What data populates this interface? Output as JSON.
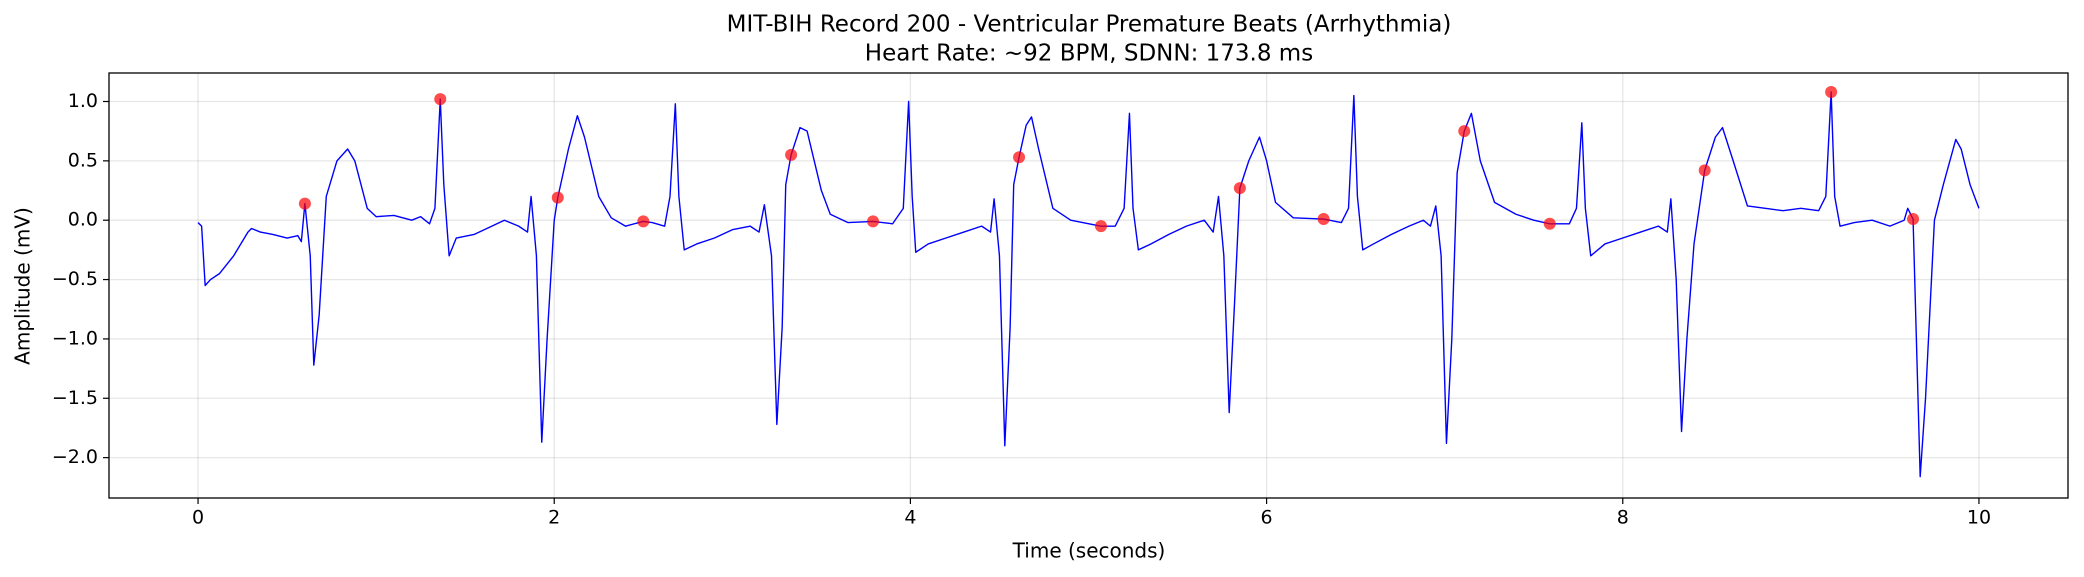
{
  "chart_data": {
    "type": "line",
    "title": "MIT-BIH Record 200 - Ventricular Premature Beats (Arrhythmia)",
    "subtitle": "Heart Rate: ~92 BPM, SDNN: 173.8 ms",
    "x_label": "Time (seconds)",
    "y_label": "Amplitude (mV)",
    "xlim": [
      -0.5,
      10.5
    ],
    "ylim": [
      -2.34,
      1.24
    ],
    "xticks": [
      0,
      2,
      4,
      6,
      8,
      10
    ],
    "yticks": [
      {
        "value": -2.0,
        "label": "−2.0"
      },
      {
        "value": -1.5,
        "label": "−1.5"
      },
      {
        "value": -1.0,
        "label": "−1.0"
      },
      {
        "value": -0.5,
        "label": "−0.5"
      },
      {
        "value": 0.0,
        "label": "0.0"
      },
      {
        "value": 0.5,
        "label": "0.5"
      },
      {
        "value": 1.0,
        "label": "1.0"
      }
    ],
    "grid": true,
    "series": [
      {
        "type": "line",
        "color": "#0000ff",
        "x": [
          0,
          0.02,
          0.04,
          0.07,
          0.12,
          0.2,
          0.28,
          0.3,
          0.35,
          0.42,
          0.5,
          0.56,
          0.58,
          0.6,
          0.63,
          0.65,
          0.68,
          0.72,
          0.78,
          0.84,
          0.88,
          0.95,
          1.0,
          1.1,
          1.2,
          1.25,
          1.3,
          1.33,
          1.36,
          1.38,
          1.41,
          1.45,
          1.55,
          1.65,
          1.72,
          1.8,
          1.85,
          1.87,
          1.9,
          1.93,
          1.96,
          2.0,
          2.02,
          2.08,
          2.13,
          2.17,
          2.25,
          2.32,
          2.4,
          2.5,
          2.55,
          2.62,
          2.65,
          2.68,
          2.7,
          2.73,
          2.8,
          2.9,
          3.0,
          3.1,
          3.15,
          3.18,
          3.22,
          3.25,
          3.28,
          3.3,
          3.33,
          3.38,
          3.42,
          3.5,
          3.55,
          3.65,
          3.79,
          3.9,
          3.96,
          3.99,
          4.01,
          4.03,
          4.1,
          4.2,
          4.3,
          4.4,
          4.45,
          4.47,
          4.5,
          4.53,
          4.56,
          4.58,
          4.61,
          4.65,
          4.68,
          4.72,
          4.8,
          4.9,
          5.07,
          5.15,
          5.2,
          5.23,
          5.25,
          5.28,
          5.35,
          5.45,
          5.55,
          5.65,
          5.7,
          5.73,
          5.76,
          5.79,
          5.82,
          5.85,
          5.9,
          5.96,
          6.0,
          6.05,
          6.15,
          6.32,
          6.42,
          6.46,
          6.49,
          6.51,
          6.54,
          6.6,
          6.7,
          6.8,
          6.88,
          6.92,
          6.95,
          6.98,
          7.01,
          7.04,
          7.07,
          7.11,
          7.15,
          7.2,
          7.28,
          7.4,
          7.5,
          7.59,
          7.7,
          7.74,
          7.77,
          7.79,
          7.82,
          7.9,
          8.0,
          8.1,
          8.2,
          8.25,
          8.27,
          8.3,
          8.33,
          8.36,
          8.4,
          8.46,
          8.52,
          8.56,
          8.62,
          8.7,
          8.8,
          8.9,
          9.0,
          9.1,
          9.14,
          9.17,
          9.19,
          9.22,
          9.3,
          9.4,
          9.5,
          9.58,
          9.6,
          9.63,
          9.67,
          9.7,
          9.75,
          9.8,
          9.87,
          9.9,
          9.95,
          10.0
        ],
        "values": [
          -0.02,
          -0.05,
          -0.55,
          -0.5,
          -0.45,
          -0.3,
          -0.1,
          -0.07,
          -0.1,
          -0.12,
          -0.15,
          -0.13,
          -0.18,
          0.14,
          -0.3,
          -1.22,
          -0.8,
          0.2,
          0.5,
          0.6,
          0.5,
          0.1,
          0.03,
          0.04,
          0.0,
          0.03,
          -0.03,
          0.1,
          1.02,
          0.3,
          -0.3,
          -0.15,
          -0.12,
          -0.05,
          0.0,
          -0.05,
          -0.1,
          0.2,
          -0.3,
          -1.87,
          -1.0,
          0.0,
          0.19,
          0.6,
          0.88,
          0.7,
          0.2,
          0.02,
          -0.05,
          -0.01,
          -0.02,
          -0.05,
          0.2,
          0.98,
          0.2,
          -0.25,
          -0.2,
          -0.15,
          -0.08,
          -0.05,
          -0.1,
          0.13,
          -0.3,
          -1.72,
          -0.9,
          0.3,
          0.55,
          0.78,
          0.75,
          0.25,
          0.05,
          -0.02,
          -0.01,
          -0.03,
          0.1,
          1.0,
          0.2,
          -0.27,
          -0.2,
          -0.15,
          -0.1,
          -0.05,
          -0.1,
          0.18,
          -0.3,
          -1.9,
          -0.9,
          0.3,
          0.53,
          0.8,
          0.87,
          0.6,
          0.1,
          0.0,
          -0.05,
          -0.05,
          0.1,
          0.9,
          0.1,
          -0.25,
          -0.2,
          -0.12,
          -0.05,
          0.0,
          -0.1,
          0.2,
          -0.3,
          -1.62,
          -0.7,
          0.27,
          0.5,
          0.7,
          0.5,
          0.15,
          0.02,
          0.01,
          -0.02,
          0.1,
          1.05,
          0.2,
          -0.25,
          -0.2,
          -0.12,
          -0.05,
          0.0,
          -0.05,
          0.12,
          -0.3,
          -1.88,
          -1.0,
          0.4,
          0.75,
          0.9,
          0.5,
          0.15,
          0.05,
          0.0,
          -0.03,
          -0.03,
          0.1,
          0.82,
          0.1,
          -0.3,
          -0.2,
          -0.15,
          -0.1,
          -0.05,
          -0.1,
          0.18,
          -0.5,
          -1.78,
          -1.0,
          -0.2,
          0.42,
          0.7,
          0.78,
          0.5,
          0.12,
          0.1,
          0.08,
          0.1,
          0.08,
          0.2,
          1.08,
          0.2,
          -0.05,
          -0.02,
          0.0,
          -0.05,
          0.0,
          0.1,
          0.01,
          -2.16,
          -1.5,
          0.0,
          0.3,
          0.68,
          0.6,
          0.3,
          0.1
        ]
      },
      {
        "type": "scatter",
        "color": "#ff0000",
        "x": [
          0.6,
          1.36,
          2.02,
          2.5,
          3.33,
          3.79,
          4.61,
          5.07,
          5.85,
          6.32,
          7.11,
          7.59,
          8.46,
          9.17,
          9.63
        ],
        "values": [
          0.14,
          1.02,
          0.19,
          -0.01,
          0.55,
          -0.01,
          0.53,
          -0.05,
          0.27,
          0.01,
          0.75,
          -0.03,
          0.42,
          1.08,
          0.01
        ]
      }
    ]
  }
}
